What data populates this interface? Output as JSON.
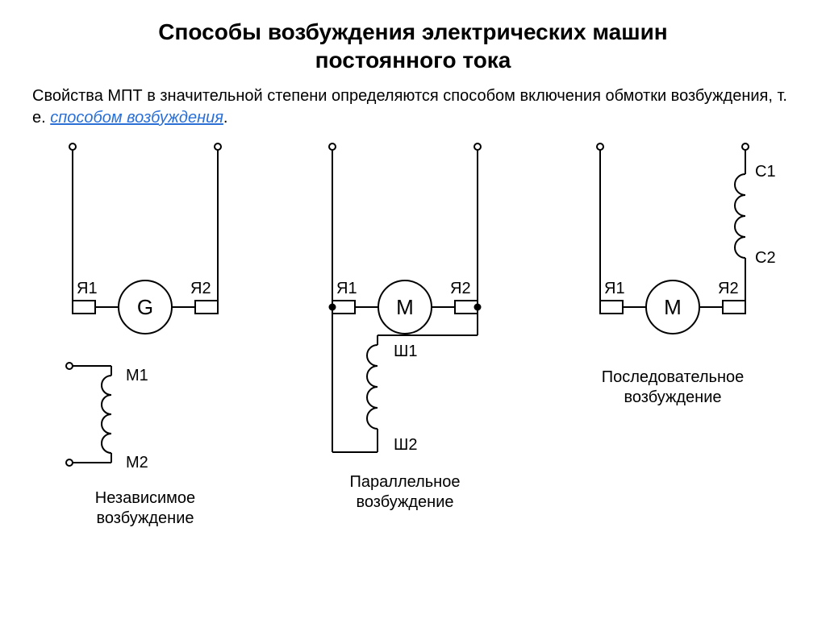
{
  "title": {
    "line1": "Способы возбуждения электрических машин",
    "line2": "постоянного тока"
  },
  "paragraph": {
    "part1": "Свойства МПТ в значительной степени определяются способом включения обмотки возбуждения, т. е. ",
    "link_text": "способом возбуждения",
    "link_color": "#2a6fd6",
    "part2": "."
  },
  "style": {
    "stroke": "#000000",
    "stroke_width": 2,
    "bg": "#ffffff"
  },
  "fig1": {
    "machine_letter": "G",
    "ya1": "Я1",
    "ya2": "Я2",
    "m1": "М1",
    "m2": "М2",
    "caption": "Независимое\nвозбуждение"
  },
  "fig2": {
    "machine_letter": "M",
    "ya1": "Я1",
    "ya2": "Я2",
    "sh1": "Ш1",
    "sh2": "Ш2",
    "caption": "Параллельное\nвозбуждение"
  },
  "fig3": {
    "machine_letter": "M",
    "ya1": "Я1",
    "ya2": "Я2",
    "c1": "С1",
    "c2": "С2",
    "caption": "Последовательное\nвозбуждение"
  }
}
